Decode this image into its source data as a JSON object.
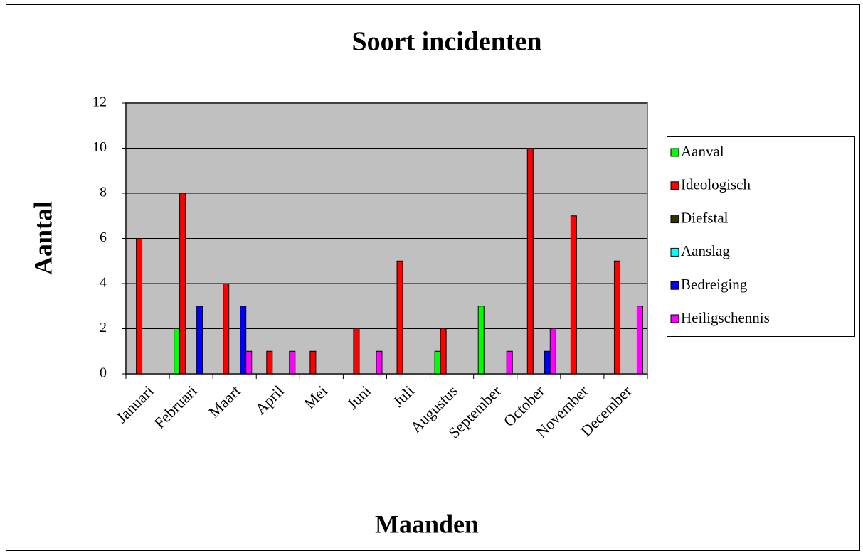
{
  "chart_data": {
    "type": "bar",
    "title": "Soort incidenten",
    "x_label": "Maanden",
    "y_label": "Aantal",
    "categories": [
      "Januari",
      "Februari",
      "Maart",
      "April",
      "Mei",
      "Juni",
      "Juli",
      "Augustus",
      "September",
      "October",
      "November",
      "December"
    ],
    "series": [
      {
        "name": "Aanval",
        "color": "#00ff00",
        "values": [
          0,
          2,
          0,
          0,
          0,
          0,
          0,
          1,
          3,
          0,
          0,
          0
        ]
      },
      {
        "name": "Ideologisch",
        "color": "#ff0000",
        "values": [
          6,
          8,
          4,
          1,
          1,
          2,
          5,
          2,
          0,
          10,
          7,
          5
        ]
      },
      {
        "name": "Diefstal",
        "color": "#333300",
        "values": [
          0,
          0,
          0,
          0,
          0,
          0,
          0,
          0,
          0,
          0,
          0,
          0
        ]
      },
      {
        "name": "Aanslag",
        "color": "#00ffff",
        "values": [
          0,
          0,
          0,
          0,
          0,
          0,
          0,
          0,
          0,
          0,
          0,
          0
        ]
      },
      {
        "name": "Bedreiging",
        "color": "#0000ff",
        "values": [
          0,
          3,
          3,
          0,
          0,
          0,
          0,
          0,
          0,
          1,
          0,
          0
        ]
      },
      {
        "name": "Heiligschennis",
        "color": "#ff00ff",
        "values": [
          0,
          0,
          1,
          1,
          0,
          1,
          0,
          0,
          1,
          2,
          0,
          3
        ]
      }
    ],
    "ylim": [
      0,
      12
    ],
    "yticks": [
      0,
      2,
      4,
      6,
      8,
      10,
      12
    ],
    "grid": true,
    "legend": "right",
    "plot_background": "#c0c0c0"
  }
}
